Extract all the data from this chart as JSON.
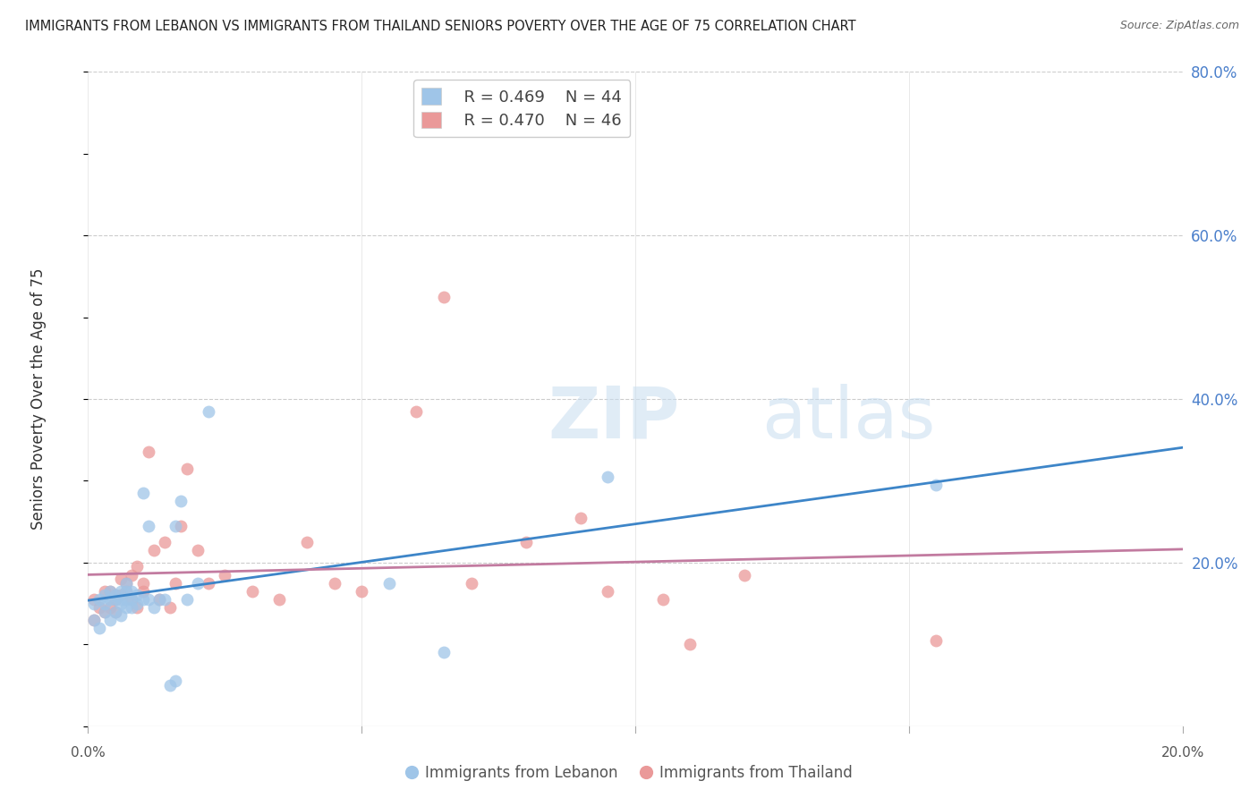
{
  "title": "IMMIGRANTS FROM LEBANON VS IMMIGRANTS FROM THAILAND SENIORS POVERTY OVER THE AGE OF 75 CORRELATION CHART",
  "source": "Source: ZipAtlas.com",
  "ylabel": "Seniors Poverty Over the Age of 75",
  "xlabel_lebanon": "Immigrants from Lebanon",
  "xlabel_thailand": "Immigrants from Thailand",
  "xlim": [
    0,
    0.2
  ],
  "ylim": [
    0,
    0.8
  ],
  "yticks_right": [
    0.2,
    0.4,
    0.6,
    0.8
  ],
  "right_tick_labels": [
    "20.0%",
    "40.0%",
    "60.0%",
    "80.0%"
  ],
  "watermark_zip": "ZIP",
  "watermark_atlas": "atlas",
  "legend_lebanon_R": "0.469",
  "legend_lebanon_N": "44",
  "legend_thailand_R": "0.470",
  "legend_thailand_N": "46",
  "color_lebanon": "#9fc5e8",
  "color_thailand": "#ea9999",
  "color_lebanon_line": "#3d85c8",
  "color_thailand_line": "#c27ba0",
  "lebanon_x": [
    0.001,
    0.001,
    0.002,
    0.002,
    0.003,
    0.003,
    0.003,
    0.004,
    0.004,
    0.004,
    0.005,
    0.005,
    0.005,
    0.006,
    0.006,
    0.006,
    0.006,
    0.007,
    0.007,
    0.007,
    0.007,
    0.008,
    0.008,
    0.008,
    0.009,
    0.009,
    0.01,
    0.01,
    0.011,
    0.011,
    0.012,
    0.013,
    0.014,
    0.015,
    0.016,
    0.016,
    0.017,
    0.018,
    0.02,
    0.022,
    0.055,
    0.065,
    0.095,
    0.155
  ],
  "lebanon_y": [
    0.13,
    0.15,
    0.12,
    0.155,
    0.14,
    0.15,
    0.16,
    0.13,
    0.155,
    0.165,
    0.14,
    0.155,
    0.16,
    0.135,
    0.15,
    0.155,
    0.165,
    0.145,
    0.155,
    0.165,
    0.175,
    0.145,
    0.155,
    0.165,
    0.15,
    0.16,
    0.155,
    0.285,
    0.155,
    0.245,
    0.145,
    0.155,
    0.155,
    0.05,
    0.055,
    0.245,
    0.275,
    0.155,
    0.175,
    0.385,
    0.175,
    0.09,
    0.305,
    0.295
  ],
  "thailand_x": [
    0.001,
    0.001,
    0.002,
    0.003,
    0.003,
    0.004,
    0.004,
    0.005,
    0.005,
    0.005,
    0.006,
    0.006,
    0.007,
    0.007,
    0.008,
    0.008,
    0.009,
    0.009,
    0.01,
    0.01,
    0.011,
    0.012,
    0.013,
    0.014,
    0.015,
    0.016,
    0.017,
    0.018,
    0.02,
    0.022,
    0.025,
    0.03,
    0.035,
    0.04,
    0.045,
    0.05,
    0.06,
    0.065,
    0.07,
    0.08,
    0.09,
    0.095,
    0.105,
    0.11,
    0.12,
    0.155
  ],
  "thailand_y": [
    0.13,
    0.155,
    0.145,
    0.14,
    0.165,
    0.145,
    0.165,
    0.14,
    0.155,
    0.16,
    0.16,
    0.18,
    0.165,
    0.175,
    0.155,
    0.185,
    0.145,
    0.195,
    0.165,
    0.175,
    0.335,
    0.215,
    0.155,
    0.225,
    0.145,
    0.175,
    0.245,
    0.315,
    0.215,
    0.175,
    0.185,
    0.165,
    0.155,
    0.225,
    0.175,
    0.165,
    0.385,
    0.525,
    0.175,
    0.225,
    0.255,
    0.165,
    0.155,
    0.1,
    0.185,
    0.105
  ]
}
